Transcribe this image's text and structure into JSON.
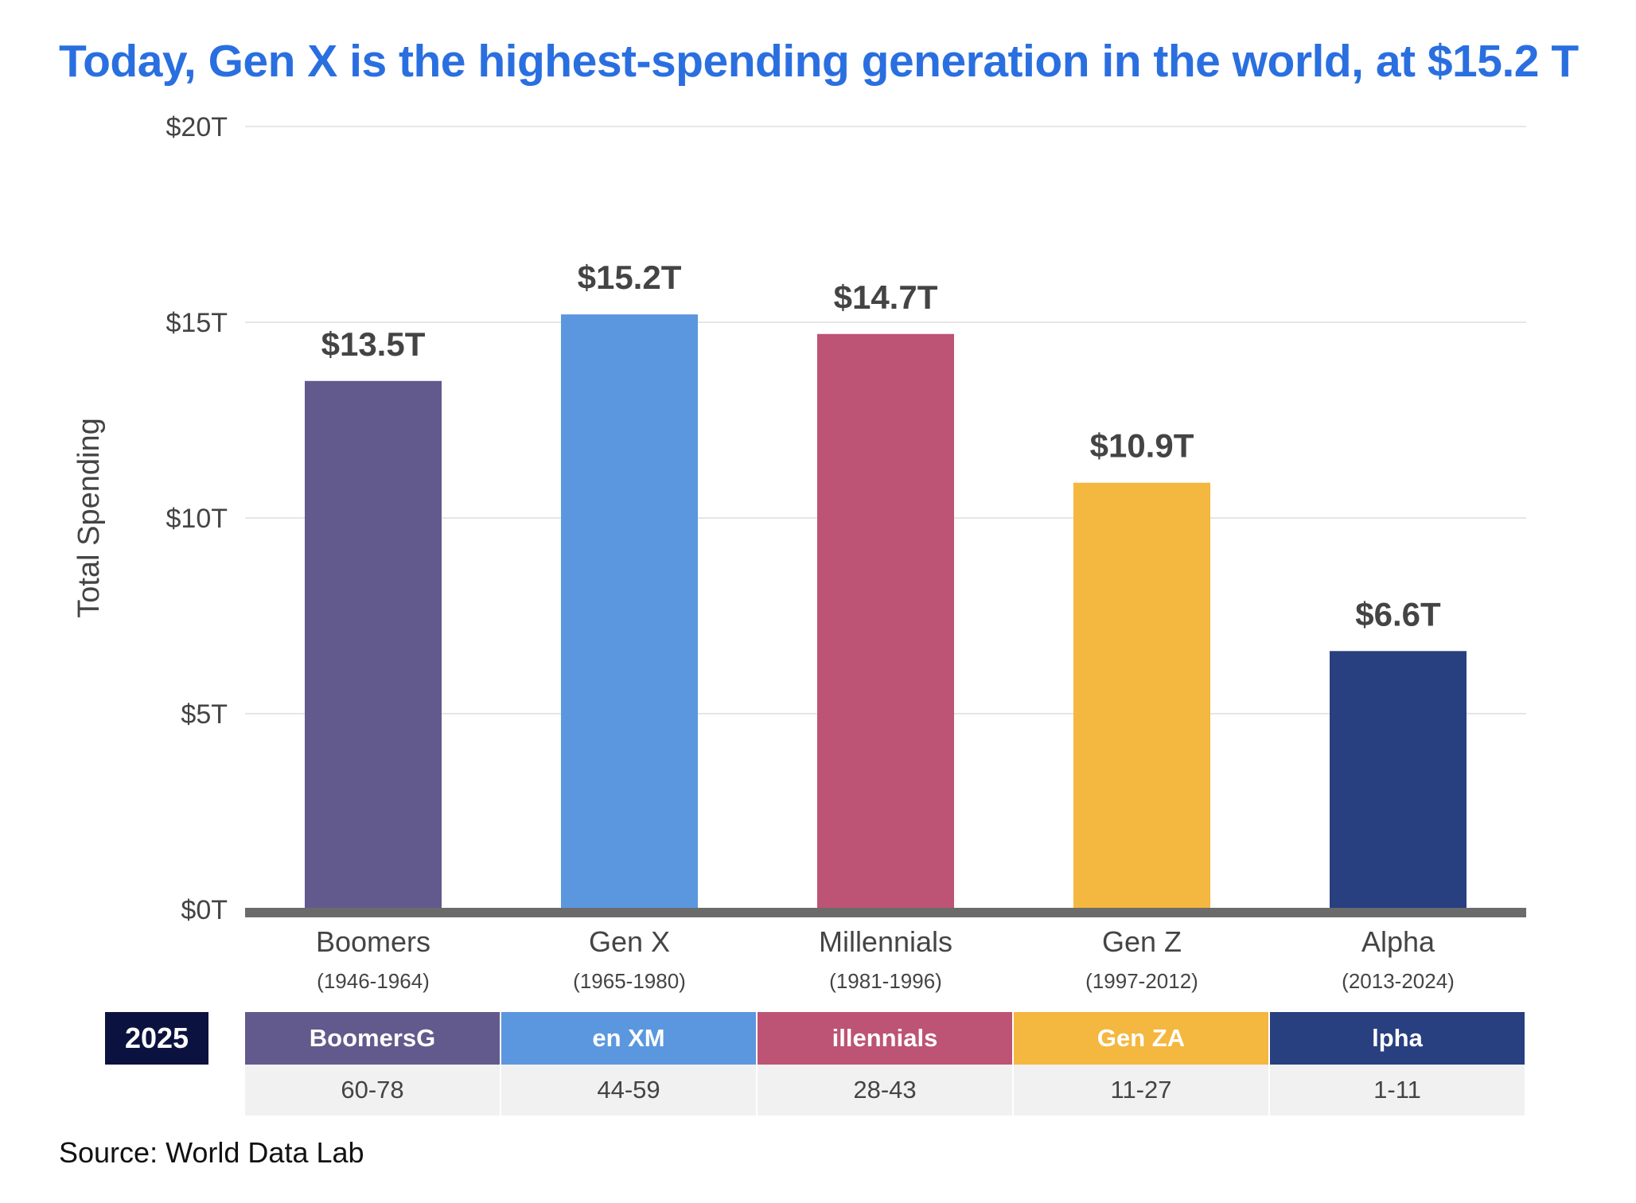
{
  "title": "Today, Gen X is the highest-spending generation in the world, at $15.2 T",
  "source": "Source: World Data Lab",
  "chart_data": {
    "type": "bar",
    "title": "Today, Gen X is the highest-spending generation in the world, at $15.2 T",
    "ylabel": "Total Spending",
    "xlabel": "",
    "ylim": [
      0,
      20
    ],
    "yticks": [
      0,
      5,
      10,
      15,
      20
    ],
    "ytick_labels": [
      "$0T",
      "$5T",
      "$10T",
      "$15T",
      "$20T"
    ],
    "grid": true,
    "categories": [
      "Boomers",
      "Gen X",
      "Millennials",
      "Gen Z",
      "Alpha"
    ],
    "category_years": [
      "(1946-1964)",
      "(1965-1980)",
      "(1981-1996)",
      "(1997-2012)",
      "(2013-2024)"
    ],
    "values": [
      13.5,
      15.2,
      14.7,
      10.9,
      6.6
    ],
    "data_labels": [
      "$13.5T",
      "$15.2T",
      "$14.7T",
      "$10.9T",
      "$6.6T"
    ],
    "colors": [
      "#625a8c",
      "#5b97de",
      "#bd5375",
      "#f4b740",
      "#283f80"
    ]
  },
  "age_table": {
    "year_label": "2025",
    "headers": [
      "BoomersG",
      "en XM",
      "illennials",
      "Gen ZA",
      "lpha"
    ],
    "ages": [
      "60-78",
      "44-59",
      "28-43",
      "11-27",
      "1-11"
    ]
  }
}
